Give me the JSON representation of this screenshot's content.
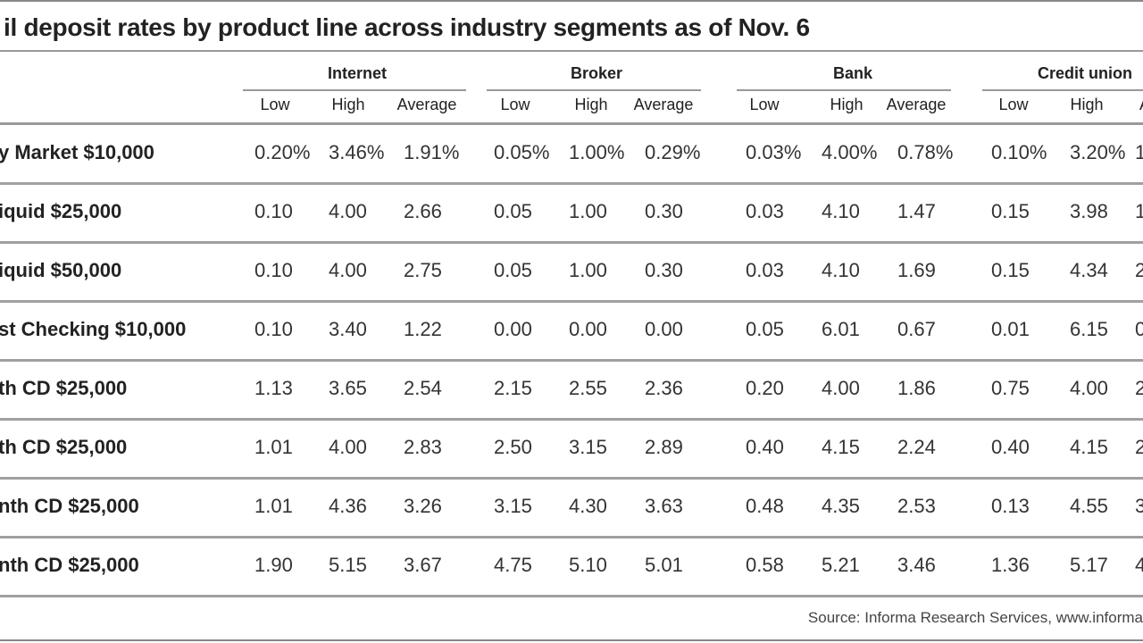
{
  "title": "il deposit rates by product line across industry segments as of Nov. 6",
  "table": {
    "groups": [
      "Internet",
      "Broker",
      "Bank",
      "Credit union"
    ],
    "columns": [
      "Low",
      "High",
      "Average",
      "Low",
      "High",
      "Average",
      "Low",
      "High",
      "Average",
      "Low",
      "High",
      "A"
    ],
    "rows": [
      {
        "label": "y Market $10,000",
        "cells": [
          "0.20%",
          "3.46%",
          "1.91%",
          "0.05%",
          "1.00%",
          "0.29%",
          "0.03%",
          "4.00%",
          "0.78%",
          "0.10%",
          "3.20%",
          "1"
        ]
      },
      {
        "label": "iquid $25,000",
        "cells": [
          "0.10",
          "4.00",
          "2.66",
          "0.05",
          "1.00",
          "0.30",
          "0.03",
          "4.10",
          "1.47",
          "0.15",
          "3.98",
          "1"
        ]
      },
      {
        "label": "iquid $50,000",
        "cells": [
          "0.10",
          "4.00",
          "2.75",
          "0.05",
          "1.00",
          "0.30",
          "0.03",
          "4.10",
          "1.69",
          "0.15",
          "4.34",
          "2"
        ]
      },
      {
        "label": "st Checking $10,000",
        "cells": [
          "0.10",
          "3.40",
          "1.22",
          "0.00",
          "0.00",
          "0.00",
          "0.05",
          "6.01",
          "0.67",
          "0.01",
          "6.15",
          "0"
        ]
      },
      {
        "label": "th CD $25,000",
        "cells": [
          "1.13",
          "3.65",
          "2.54",
          "2.15",
          "2.55",
          "2.36",
          "0.20",
          "4.00",
          "1.86",
          "0.75",
          "4.00",
          "2"
        ]
      },
      {
        "label": "th CD $25,000",
        "cells": [
          "1.01",
          "4.00",
          "2.83",
          "2.50",
          "3.15",
          "2.89",
          "0.40",
          "4.15",
          "2.24",
          "0.40",
          "4.15",
          "2"
        ]
      },
      {
        "label": "nth CD $25,000",
        "cells": [
          "1.01",
          "4.36",
          "3.26",
          "3.15",
          "4.30",
          "3.63",
          "0.48",
          "4.35",
          "2.53",
          "0.13",
          "4.55",
          "3"
        ]
      },
      {
        "label": "nth CD $25,000",
        "cells": [
          "1.90",
          "5.15",
          "3.67",
          "4.75",
          "5.10",
          "5.01",
          "0.58",
          "5.21",
          "3.46",
          "1.36",
          "5.17",
          "4"
        ]
      }
    ]
  },
  "source": "Source: Informa Research Services, www.informa"
}
